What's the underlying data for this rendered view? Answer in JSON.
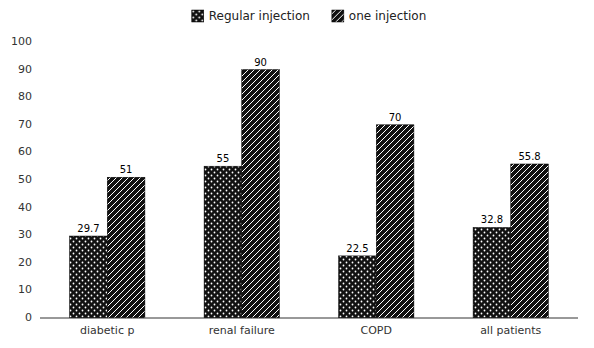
{
  "chart_data": {
    "type": "bar",
    "categories": [
      "diabetic p",
      "renal failure",
      "COPD",
      "all patients"
    ],
    "series": [
      {
        "name": "Regular injection",
        "color": "#111111",
        "values": [
          29.7,
          55,
          22.5,
          32.8
        ]
      },
      {
        "name": "one injection",
        "color": "#111111",
        "values": [
          51,
          90,
          70,
          55.8
        ]
      }
    ],
    "ylim": [
      0,
      100
    ],
    "yticks": [
      0,
      10,
      20,
      30,
      40,
      50,
      60,
      70,
      80,
      90,
      100
    ],
    "grid": false,
    "legend": "top",
    "data_labels": true
  }
}
